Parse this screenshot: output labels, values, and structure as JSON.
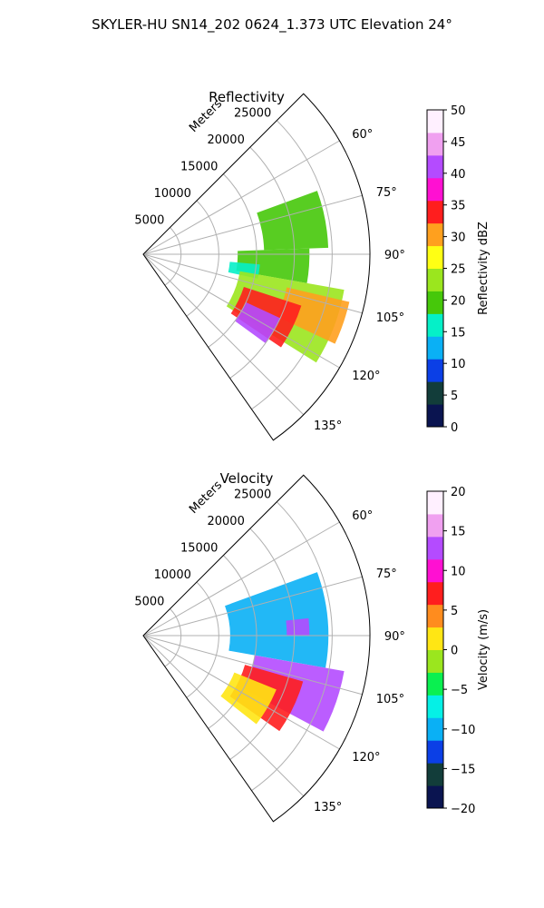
{
  "figure": {
    "suptitle": "SKYLER-HU  SN14_202  0624_1.373 UTC Elevation 24°"
  },
  "chart_data": [
    {
      "type": "heatmap",
      "subtype": "polar-sector",
      "title": "Reflectivity",
      "range_label": "Meters",
      "range_ticks": [
        5000,
        10000,
        15000,
        20000,
        25000
      ],
      "range_tick_labels": [
        "5000",
        "10000",
        "15000",
        "20000",
        "25000"
      ],
      "range_lim": [
        0,
        30000
      ],
      "azimuth_range": [
        45,
        145
      ],
      "azimuth_ticks": [
        60,
        75,
        90,
        105,
        120,
        135
      ],
      "azimuth_tick_labels": [
        "60°",
        "75°",
        "90°",
        "105°",
        "120°",
        "135°"
      ],
      "grid": true,
      "colorbar": {
        "label": "Reflectivity dBZ",
        "min": 0,
        "max": 50,
        "ticks": [
          0,
          5,
          10,
          15,
          20,
          25,
          30,
          35,
          40,
          45,
          50
        ],
        "tick_labels": [
          "0",
          "5",
          "10",
          "15",
          "20",
          "25",
          "30",
          "35",
          "40",
          "45",
          "50"
        ],
        "colors": [
          "#0a1450",
          "#123d3a",
          "#0b3fe6",
          "#0ab0f5",
          "#05f0c8",
          "#46c80a",
          "#9be61e",
          "#ffff14",
          "#ffa01e",
          "#ff1e1e",
          "#ff10d2",
          "#b44bff",
          "#f0a0f0",
          "#fff0ff"
        ]
      },
      "echo_regions": [
        {
          "value": 20,
          "az": [
            70,
            88
          ],
          "r": [
            16000,
            24500
          ]
        },
        {
          "value": 18,
          "az": [
            88,
            100
          ],
          "r": [
            12500,
            22000
          ]
        },
        {
          "value": 15,
          "az": [
            95,
            102
          ],
          "r": [
            11500,
            15500
          ]
        },
        {
          "value": 22,
          "az": [
            100,
            122
          ],
          "r": [
            13000,
            27000
          ]
        },
        {
          "value": 30,
          "az": [
            103,
            115
          ],
          "r": [
            19500,
            28000
          ]
        },
        {
          "value": 35,
          "az": [
            108,
            124
          ],
          "r": [
            14000,
            22000
          ]
        },
        {
          "value": 42,
          "az": [
            115,
            126
          ],
          "r": [
            15000,
            20000
          ]
        }
      ]
    },
    {
      "type": "heatmap",
      "subtype": "polar-sector",
      "title": "Velocity",
      "range_label": "Meters",
      "range_ticks": [
        5000,
        10000,
        15000,
        20000,
        25000
      ],
      "range_tick_labels": [
        "5000",
        "10000",
        "15000",
        "20000",
        "25000"
      ],
      "range_lim": [
        0,
        30000
      ],
      "azimuth_range": [
        45,
        145
      ],
      "azimuth_ticks": [
        60,
        75,
        90,
        105,
        120,
        135
      ],
      "azimuth_tick_labels": [
        "60°",
        "75°",
        "90°",
        "105°",
        "120°",
        "135°"
      ],
      "grid": true,
      "colorbar": {
        "label": "Velocity (m/s)",
        "min": -20,
        "max": 20,
        "ticks": [
          -20,
          -15,
          -10,
          -5,
          0,
          5,
          10,
          15,
          20
        ],
        "tick_labels": [
          "−20",
          "−15",
          "−10",
          "−5",
          "0",
          "5",
          "10",
          "15",
          "20"
        ],
        "colors": [
          "#0a1450",
          "#123d3a",
          "#0b3fe6",
          "#0ab0f5",
          "#05f0e6",
          "#0af050",
          "#9be61e",
          "#ffe614",
          "#ff8c1e",
          "#ff1e1e",
          "#ff10d2",
          "#b44bff",
          "#f0a0f0",
          "#fff0ff"
        ]
      },
      "echo_regions": [
        {
          "value": -11,
          "az": [
            70,
            100
          ],
          "r": [
            11500,
            24500
          ]
        },
        {
          "value": 12,
          "az": [
            100,
            118
          ],
          "r": [
            15000,
            27000
          ]
        },
        {
          "value": 8,
          "az": [
            106,
            125
          ],
          "r": [
            14000,
            22000
          ]
        },
        {
          "value": 2,
          "az": [
            112,
            128
          ],
          "r": [
            13000,
            19000
          ]
        },
        {
          "value": 14,
          "az": [
            84,
            90
          ],
          "r": [
            19000,
            22000
          ]
        }
      ]
    }
  ]
}
